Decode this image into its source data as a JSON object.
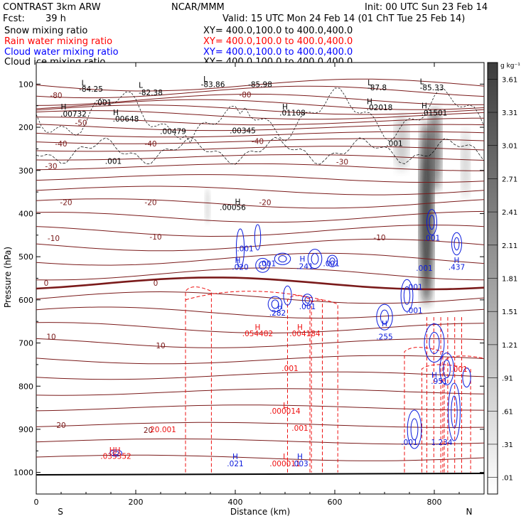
{
  "header": {
    "model": "CONTRAST   3km ARW",
    "center": "NCAR/MMM",
    "init": "Init: 00 UTC Sun 23 Feb 14",
    "fcst_label": "Fcst:",
    "fcst_value": "39 h",
    "valid": "Valid: 15 UTC Mon 24 Feb 14 (01 ChT Tue 25 Feb 14)",
    "fields": [
      {
        "name": "Snow mixing ratio",
        "xy": "XY= 400.0,100.0 to 400.0,400.0",
        "color": "#000000"
      },
      {
        "name": "Rain water mixing ratio",
        "xy": "XY= 400.0,100.0 to 400.0,400.0",
        "color": "#ff0000"
      },
      {
        "name": "Cloud water mixing ratio",
        "xy": "XY= 400.0,100.0 to 400.0,400.0",
        "color": "#0000ff"
      },
      {
        "name": "Cloud ice mixing ratio",
        "xy": "XY= 400.0,100.0 to 400.0,400.0",
        "color": "#000000"
      }
    ]
  },
  "colors": {
    "temperature": "#7a1a1a",
    "rain": "#ee1010",
    "cloud_water": "#0a1adc",
    "cloud_ice": "#000000"
  },
  "chart_data": {
    "type": "line",
    "xlabel": "Distance (km)",
    "ylabel": "Pressure (hPa)",
    "xlim": [
      0,
      900
    ],
    "ylim": [
      1050,
      50
    ],
    "x_ticks": [
      "0",
      "200",
      "400",
      "600",
      "800"
    ],
    "x_tick_values": [
      0,
      200,
      400,
      600,
      800
    ],
    "y_ticks": [
      "100",
      "200",
      "300",
      "400",
      "500",
      "600",
      "700",
      "800",
      "900",
      "1000"
    ],
    "y_tick_values": [
      100,
      200,
      300,
      400,
      500,
      600,
      700,
      800,
      900,
      1000
    ],
    "endpoints": {
      "left": "S",
      "right": "N"
    },
    "colorbar": {
      "unit": "g kg⁻¹",
      "labels": [
        "3.61",
        "3.31",
        "3.01",
        "2.71",
        "2.41",
        "2.11",
        "1.81",
        "1.51",
        "1.21",
        ".91",
        ".61",
        ".31",
        ".01"
      ],
      "values": [
        3.61,
        3.31,
        3.01,
        2.71,
        2.41,
        2.11,
        1.81,
        1.51,
        1.21,
        0.91,
        0.61,
        0.31,
        0.01
      ]
    },
    "temperature_contour_labels": [
      {
        "text": "-80",
        "x": 40,
        "p": 126
      },
      {
        "text": "-80",
        "x": 420,
        "p": 124
      },
      {
        "text": "-50",
        "x": 90,
        "p": 189
      },
      {
        "text": "-40",
        "x": 50,
        "p": 238
      },
      {
        "text": "-40",
        "x": 230,
        "p": 238
      },
      {
        "text": "-40",
        "x": 445,
        "p": 232
      },
      {
        "text": "-30",
        "x": 30,
        "p": 290
      },
      {
        "text": "-30",
        "x": 615,
        "p": 280
      },
      {
        "text": "-20",
        "x": 60,
        "p": 374
      },
      {
        "text": "-20",
        "x": 230,
        "p": 374
      },
      {
        "text": "-20",
        "x": 460,
        "p": 374
      },
      {
        "text": "-10",
        "x": 35,
        "p": 457
      },
      {
        "text": "-10",
        "x": 240,
        "p": 454
      },
      {
        "text": "-10",
        "x": 690,
        "p": 455
      },
      {
        "text": "0",
        "x": 20,
        "p": 561
      },
      {
        "text": "0",
        "x": 240,
        "p": 561
      },
      {
        "text": "10",
        "x": 30,
        "p": 685
      },
      {
        "text": "10",
        "x": 250,
        "p": 706
      },
      {
        "text": "20",
        "x": 50,
        "p": 890
      },
      {
        "text": "20",
        "x": 225,
        "p": 902
      }
    ],
    "snow_ice_labels": [
      {
        "text": "L",
        "x": 95,
        "p": 97
      },
      {
        "text": "-84.25",
        "x": 110,
        "p": 111
      },
      {
        "text": "L",
        "x": 210,
        "p": 102
      },
      {
        "text": "-82.38",
        "x": 230,
        "p": 119
      },
      {
        "text": "L",
        "x": 340,
        "p": 88
      },
      {
        "text": "-83.86",
        "x": 355,
        "p": 100
      },
      {
        "text": "-85.98",
        "x": 450,
        "p": 100
      },
      {
        "text": "L",
        "x": 670,
        "p": 96
      },
      {
        "text": "-87.8",
        "x": 685,
        "p": 108
      },
      {
        "text": "L",
        "x": 775,
        "p": 94
      },
      {
        "text": "-85.33",
        "x": 795,
        "p": 108
      },
      {
        "text": ".001",
        "x": 135,
        "p": 142
      },
      {
        "text": "H",
        "x": 55,
        "p": 152
      },
      {
        "text": ".00732",
        "x": 75,
        "p": 169
      },
      {
        "text": "H",
        "x": 160,
        "p": 165
      },
      {
        "text": ".00648",
        "x": 180,
        "p": 180
      },
      {
        "text": "H",
        "x": 500,
        "p": 152
      },
      {
        "text": ".01108",
        "x": 515,
        "p": 166
      },
      {
        "text": "H",
        "x": 670,
        "p": 140
      },
      {
        "text": ".02018",
        "x": 690,
        "p": 154
      },
      {
        "text": "H",
        "x": 780,
        "p": 150
      },
      {
        "text": ".01501",
        "x": 800,
        "p": 166
      },
      {
        "text": ".00479",
        "x": 275,
        "p": 209
      },
      {
        "text": ".00345",
        "x": 415,
        "p": 207
      },
      {
        "text": ".001",
        "x": 720,
        "p": 237
      },
      {
        "text": ".001",
        "x": 155,
        "p": 278
      },
      {
        "text": "H",
        "x": 405,
        "p": 372
      },
      {
        "text": ".00056",
        "x": 395,
        "p": 385
      }
    ],
    "rain_labels": [
      {
        "text": "H",
        "x": 445,
        "p": 663
      },
      {
        "text": ".054482",
        "x": 445,
        "p": 678
      },
      {
        "text": "H",
        "x": 530,
        "p": 663
      },
      {
        "text": ".004184",
        "x": 540,
        "p": 678
      },
      {
        "text": ".001",
        "x": 510,
        "p": 758
      },
      {
        "text": "L",
        "x": 500,
        "p": 844
      },
      {
        "text": ".000014",
        "x": 500,
        "p": 857
      },
      {
        "text": "20.001",
        "x": 255,
        "p": 900
      },
      {
        "text": ".001",
        "x": 530,
        "p": 897
      },
      {
        "text": "L",
        "x": 500,
        "p": 963
      },
      {
        "text": ".000011",
        "x": 500,
        "p": 979
      },
      {
        "text": "HH",
        "x": 158,
        "p": 948
      },
      {
        "text": ".035352",
        "x": 160,
        "p": 962
      },
      {
        "text": ".001",
        "x": 850,
        "p": 760
      }
    ],
    "cloud_water_labels": [
      {
        "text": ".001",
        "x": 420,
        "p": 481
      },
      {
        "text": "H",
        "x": 405,
        "p": 508
      },
      {
        "text": ".020",
        "x": 410,
        "p": 524
      },
      {
        "text": ".001",
        "x": 465,
        "p": 515
      },
      {
        "text": "H",
        "x": 535,
        "p": 505
      },
      {
        "text": ".241",
        "x": 540,
        "p": 522
      },
      {
        "text": ".001",
        "x": 593,
        "p": 515
      },
      {
        "text": "H",
        "x": 490,
        "p": 615
      },
      {
        "text": ".282",
        "x": 485,
        "p": 630
      },
      {
        "text": ".001",
        "x": 545,
        "p": 615
      },
      {
        "text": "H",
        "x": 700,
        "p": 655
      },
      {
        "text": ".255",
        "x": 700,
        "p": 685
      },
      {
        "text": ".001",
        "x": 760,
        "p": 624
      },
      {
        "text": ".001",
        "x": 780,
        "p": 526
      },
      {
        "text": ".001",
        "x": 795,
        "p": 456
      },
      {
        "text": "H",
        "x": 845,
        "p": 508
      },
      {
        "text": ".437",
        "x": 845,
        "p": 524
      },
      {
        "text": ".001",
        "x": 760,
        "p": 570
      },
      {
        "text": "H",
        "x": 800,
        "p": 774
      },
      {
        "text": ".951",
        "x": 810,
        "p": 788
      },
      {
        "text": ".001",
        "x": 750,
        "p": 930
      },
      {
        "text": "H",
        "x": 400,
        "p": 963
      },
      {
        "text": ".021",
        "x": 400,
        "p": 979
      },
      {
        "text": "H",
        "x": 530,
        "p": 963
      },
      {
        "text": ".003",
        "x": 530,
        "p": 979
      },
      {
        "text": "1.234",
        "x": 815,
        "p": 930
      }
    ]
  }
}
